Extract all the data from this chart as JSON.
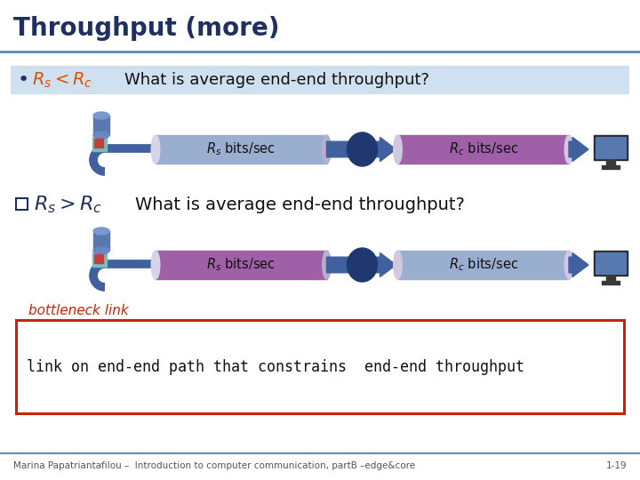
{
  "title": "Throughput (more)",
  "title_color": "#1f3060",
  "title_fontsize": 20,
  "bg_color": "#ffffff",
  "separator_color": "#5b8db8",
  "bullet1_bg": "#cfe0f0",
  "bullet1_color": "#e05000",
  "bullet2_color": "#1f3060",
  "pipe_blue": "#9aaed0",
  "pipe_purple": "#a060a8",
  "pipe_edge_blue": "#7888b8",
  "pipe_edge_purple": "#804898",
  "pipe_end_light": "#d8d0e8",
  "arrow_color": "#4060a0",
  "mid_oval_color": "#203870",
  "server_body": "#5878b0",
  "server_top": "#7898d0",
  "server_pipe": "#4060a0",
  "monitor_frame": "#282828",
  "monitor_screen": "#5878b0",
  "bottleneck_color": "#cc2200",
  "footer_sep_color": "#5b8db8",
  "footer_color": "#555555",
  "footer_text": "Marina Papatriantafilou –  Introduction to computer communication, partB –edge&core",
  "footer_right": "1-19",
  "box_text": "link on end-end path that constrains  end-end throughput",
  "bottleneck_text": "bottleneck link"
}
